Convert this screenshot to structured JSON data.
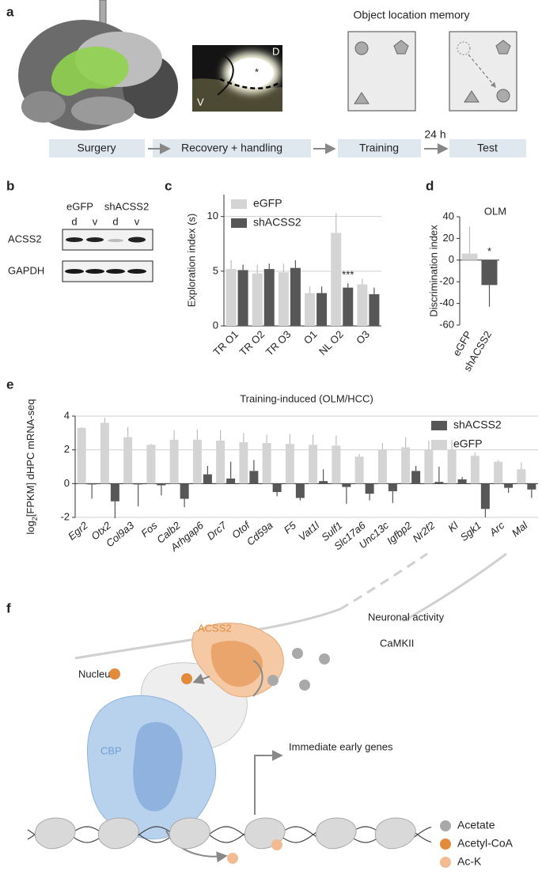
{
  "panel_labels": [
    "a",
    "b",
    "c",
    "d",
    "e",
    "f"
  ],
  "panel_a": {
    "object_location_title": "Object location memory",
    "image_labels": [
      "D",
      "V",
      "*"
    ],
    "workflow": [
      "Surgery",
      "Recovery + handling",
      "Training",
      "Test"
    ],
    "interval": "24 h"
  },
  "panel_b": {
    "groups": [
      "eGFP",
      "shACSS2"
    ],
    "lanes": [
      "d",
      "v",
      "d",
      "v"
    ],
    "rows": [
      "ACSS2",
      "GAPDH"
    ]
  },
  "chart_data": [
    {
      "type": "bar",
      "ylabel": "Exploration index (s)",
      "categories": [
        "TR O1",
        "TR O2",
        "TR O3",
        "O1",
        "NL O2",
        "O3"
      ],
      "series": [
        {
          "name": "eGFP",
          "color": "#d4d4d4",
          "values": [
            5.2,
            4.8,
            4.9,
            3.0,
            8.5,
            3.8
          ],
          "errors": [
            0.8,
            0.8,
            0.8,
            0.6,
            1.8,
            0.5
          ]
        },
        {
          "name": "shACSS2",
          "color": "#575757",
          "values": [
            5.1,
            5.2,
            5.3,
            3.0,
            3.5,
            2.9
          ],
          "errors": [
            0.5,
            0.5,
            0.7,
            0.6,
            0.4,
            0.6
          ]
        }
      ],
      "ylim": [
        0,
        12
      ],
      "yticks": [
        0,
        5,
        10
      ],
      "grid": true,
      "legend": "upper left",
      "annotations": [
        {
          "text": "***",
          "category": "NL O2",
          "series": "shACSS2"
        }
      ]
    },
    {
      "type": "bar",
      "title": "OLM",
      "ylabel": "Discrimination index",
      "categories": [
        "eGFP",
        "shACSS2"
      ],
      "values": [
        6,
        -23
      ],
      "errors": [
        25,
        20
      ],
      "colors": [
        "#d4d4d4",
        "#575757"
      ],
      "ylim": [
        -60,
        40
      ],
      "yticks": [
        -60,
        -40,
        -20,
        0,
        20,
        40
      ],
      "grid": false,
      "annotations": [
        {
          "text": "*",
          "category": "shACSS2"
        }
      ]
    },
    {
      "type": "bar",
      "title": "Training-induced (OLM/HCC)",
      "ylabel": {
        "base": "log",
        "subscript": "2",
        "rest": "[FPKM] dHPC mRNA-seq"
      },
      "categories": [
        "Egr2",
        "Otx2",
        "Col9a3",
        "Fos",
        "Calb2",
        "Arhgap6",
        "Drc7",
        "Otof",
        "Cd59a",
        "F5",
        "Vat1l",
        "Sulf1",
        "Slc17a6",
        "Unc13c",
        "Igfbp2",
        "Nr2f2",
        "Kl",
        "Sgk1",
        "Arc",
        "Mal"
      ],
      "italic_categories": true,
      "series": [
        {
          "name": "eGFP",
          "color": "#d4d4d4",
          "values": [
            3.3,
            3.6,
            2.75,
            2.3,
            2.6,
            2.6,
            2.55,
            2.45,
            2.4,
            2.35,
            2.3,
            2.25,
            1.6,
            2.0,
            2.15,
            2.0,
            2.0,
            1.65,
            1.3,
            0.85
          ],
          "errors": [
            0.05,
            0.3,
            0.6,
            0.05,
            0.55,
            0.6,
            0.6,
            0.55,
            0.5,
            0.6,
            0.6,
            0.6,
            0.15,
            0.4,
            0.6,
            0.55,
            0.6,
            0.2,
            0.1,
            0.4
          ]
        },
        {
          "name": "shACSS2",
          "color": "#575757",
          "values": [
            -0.05,
            -1.05,
            -0.05,
            -0.1,
            -0.9,
            0.55,
            0.3,
            0.75,
            -0.5,
            -0.85,
            0.15,
            -0.2,
            -0.6,
            -0.45,
            0.75,
            0.1,
            0.25,
            -1.5,
            -0.25,
            -0.35
          ],
          "errors": [
            0.85,
            1.0,
            1.3,
            0.6,
            0.5,
            0.5,
            1.0,
            0.65,
            0.25,
            0.15,
            0.7,
            1.0,
            0.4,
            0.7,
            0.3,
            0.9,
            0.15,
            0.5,
            0.3,
            0.5
          ]
        }
      ],
      "ylim": [
        -2,
        4
      ],
      "yticks": [
        -2,
        0,
        2,
        4
      ],
      "grid": true,
      "legend": "upper right"
    }
  ],
  "panel_f": {
    "labels": {
      "neuronal_activity": "Neuronal activity",
      "camkii": "CaMKII",
      "nucleus": "Nucleus",
      "acss2": "ACSS2",
      "cbp": "CBP",
      "genes": "Immediate early genes"
    },
    "legend": [
      {
        "name": "Acetate",
        "color": "#a9a9a9"
      },
      {
        "name": "Acetyl-CoA",
        "color": "#e28b3d"
      },
      {
        "name": "Ac-K",
        "color": "#f2bb92"
      }
    ]
  }
}
